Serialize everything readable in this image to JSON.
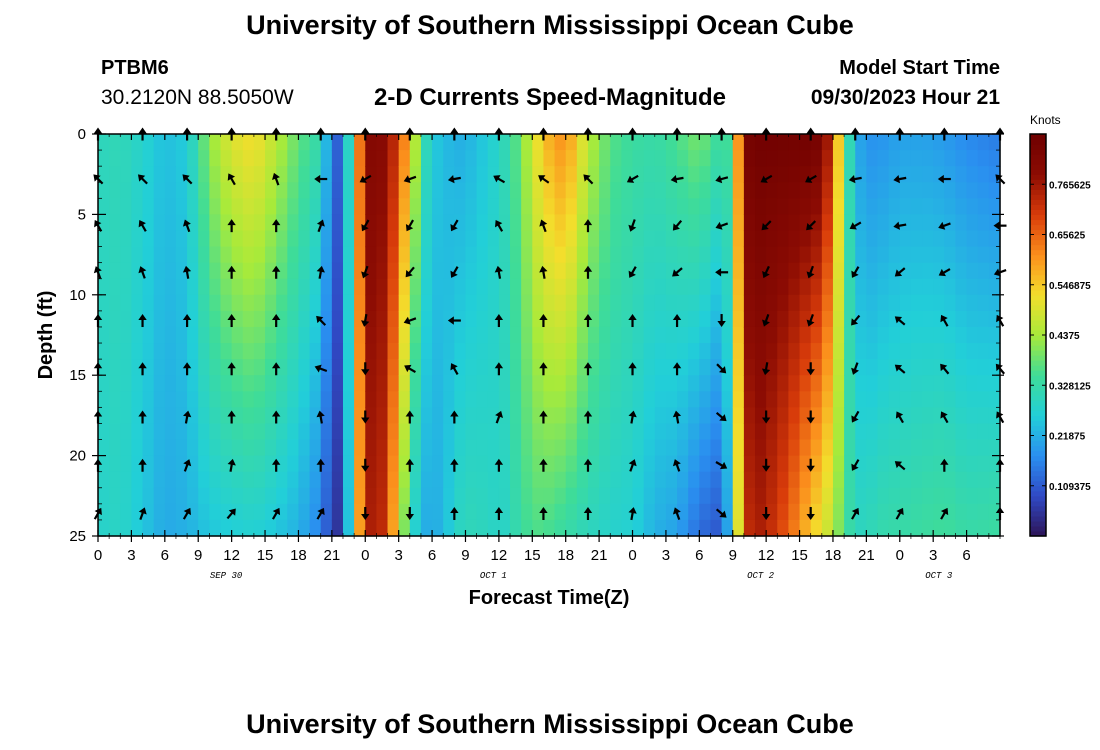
{
  "header": {
    "title": "University of Southern Mississippi Ocean Cube",
    "station_id": "PTBM6",
    "station_coords": "30.2120N  88.5050W",
    "subtitle": "2-D Currents Speed-Magnitude",
    "model_start_label": "Model Start Time",
    "model_start_value": "09/30/2023 Hour 21"
  },
  "footer": {
    "title": "University of Southern Mississippi Ocean Cube"
  },
  "colors": {
    "colormap": [
      "#2d1457",
      "#3049c4",
      "#2a8ff0",
      "#22cfd8",
      "#3fdc98",
      "#a8ea3a",
      "#f3de2c",
      "#fb8e1c",
      "#d83b0a",
      "#8c0c03",
      "#6e0000"
    ],
    "arrow": "#000000"
  },
  "chart_data": {
    "type": "heatmap",
    "xlabel": "Forecast Time(Z)",
    "ylabel": "Depth (ft)",
    "x_hours_range": [
      0,
      81
    ],
    "ylim": [
      0,
      25
    ],
    "y_ticks": [
      "0",
      "5",
      "10",
      "15",
      "20",
      "25"
    ],
    "x_ticks": [
      "0",
      "3",
      "6",
      "9",
      "12",
      "15",
      "18",
      "21",
      "0",
      "3",
      "6",
      "9",
      "12",
      "15",
      "18",
      "21",
      "0",
      "3",
      "6",
      "9",
      "12",
      "15",
      "18",
      "21",
      "0",
      "3",
      "6"
    ],
    "x_tick_hours": [
      0,
      3,
      6,
      9,
      12,
      15,
      18,
      21,
      24,
      27,
      30,
      33,
      36,
      39,
      42,
      45,
      48,
      51,
      54,
      57,
      60,
      63,
      66,
      69,
      72,
      75,
      78
    ],
    "date_labels": [
      {
        "label": "SEP 30",
        "hour": 11.5
      },
      {
        "label": "OCT 1",
        "hour": 35.5
      },
      {
        "label": "OCT 2",
        "hour": 59.5
      },
      {
        "label": "OCT 3",
        "hour": 75.5
      }
    ],
    "colorbar": {
      "unit": "Knots",
      "range": [
        0,
        0.875
      ],
      "tick_labels": [
        "0.765625",
        "0.65625",
        "0.546875",
        "0.4375",
        "0.328125",
        "0.21875",
        "0.109375"
      ],
      "tick_values": [
        0.765625,
        0.65625,
        0.546875,
        0.4375,
        0.328125,
        0.21875,
        0.109375
      ]
    },
    "speed_profile": {
      "hours": [
        0,
        2,
        4,
        6,
        8,
        10,
        12,
        14,
        16,
        18,
        20,
        21,
        22,
        23,
        24,
        25,
        26,
        27,
        28,
        29,
        30,
        31,
        32,
        33,
        34,
        35,
        36,
        37,
        38,
        39,
        40,
        42,
        44,
        46,
        48,
        50,
        52,
        54,
        56,
        57,
        58,
        59,
        60,
        61,
        62,
        63,
        64,
        65,
        66,
        67,
        68,
        69,
        70,
        72,
        74,
        76,
        78,
        81
      ],
      "surface": [
        0.3,
        0.31,
        0.28,
        0.24,
        0.26,
        0.42,
        0.5,
        0.53,
        0.46,
        0.38,
        0.32,
        0.14,
        0.1,
        0.48,
        0.8,
        0.82,
        0.78,
        0.7,
        0.55,
        0.35,
        0.26,
        0.24,
        0.22,
        0.22,
        0.24,
        0.26,
        0.29,
        0.33,
        0.4,
        0.48,
        0.56,
        0.62,
        0.46,
        0.37,
        0.34,
        0.33,
        0.36,
        0.4,
        0.33,
        0.37,
        0.84,
        0.86,
        0.86,
        0.86,
        0.86,
        0.86,
        0.86,
        0.84,
        0.7,
        0.4,
        0.22,
        0.18,
        0.18,
        0.2,
        0.2,
        0.19,
        0.17,
        0.15
      ],
      "bottom": [
        0.28,
        0.29,
        0.25,
        0.21,
        0.22,
        0.25,
        0.26,
        0.27,
        0.25,
        0.22,
        0.16,
        0.07,
        0.04,
        0.45,
        0.74,
        0.76,
        0.7,
        0.48,
        0.32,
        0.22,
        0.21,
        0.23,
        0.28,
        0.31,
        0.3,
        0.3,
        0.28,
        0.3,
        0.34,
        0.36,
        0.36,
        0.33,
        0.3,
        0.28,
        0.27,
        0.22,
        0.2,
        0.13,
        0.1,
        0.3,
        0.7,
        0.76,
        0.74,
        0.7,
        0.66,
        0.6,
        0.55,
        0.5,
        0.45,
        0.36,
        0.3,
        0.3,
        0.32,
        0.33,
        0.34,
        0.35,
        0.33,
        0.34
      ]
    },
    "arrow_rows_depth_ft": [
      0,
      2.8,
      5.7,
      8.6,
      11.6,
      14.6,
      17.6,
      20.6,
      23.6
    ],
    "arrow_cols_hours": [
      0,
      4,
      8,
      12,
      16,
      20,
      24,
      28,
      32,
      36,
      40,
      44,
      48,
      52,
      56,
      60,
      64,
      68,
      72,
      76,
      81
    ],
    "arrow_angles_deg": [
      [
        -90,
        -90,
        -90,
        -90,
        -90,
        -90,
        -90,
        -90,
        -90,
        -90,
        -90,
        -90,
        -90,
        -90,
        -90,
        -90,
        -90,
        -90,
        -90,
        -90,
        -90
      ],
      [
        -135,
        -135,
        -135,
        -120,
        -110,
        180,
        150,
        160,
        170,
        -150,
        -145,
        -135,
        150,
        170,
        165,
        150,
        150,
        170,
        170,
        180,
        -135
      ],
      [
        -120,
        -120,
        -110,
        -90,
        -90,
        -70,
        120,
        120,
        120,
        -120,
        -110,
        -90,
        110,
        130,
        160,
        135,
        135,
        150,
        170,
        160,
        180
      ],
      [
        -110,
        -110,
        -100,
        -90,
        -90,
        -80,
        110,
        130,
        120,
        -100,
        -100,
        -90,
        120,
        140,
        180,
        115,
        110,
        120,
        140,
        150,
        160
      ],
      [
        -90,
        -90,
        -90,
        -90,
        -90,
        -135,
        100,
        160,
        180,
        -90,
        -90,
        -90,
        -90,
        -90,
        90,
        110,
        110,
        130,
        -140,
        -120,
        -120
      ],
      [
        -90,
        -90,
        -90,
        -90,
        -90,
        -160,
        90,
        -150,
        -120,
        -90,
        -90,
        -90,
        -90,
        -90,
        45,
        100,
        90,
        110,
        -140,
        -130,
        -130
      ],
      [
        -90,
        -90,
        -80,
        -90,
        -90,
        -100,
        90,
        -90,
        -90,
        -70,
        -90,
        -90,
        -80,
        -100,
        40,
        90,
        90,
        120,
        -120,
        -120,
        -120
      ],
      [
        -90,
        -90,
        -70,
        -80,
        -90,
        -90,
        90,
        -90,
        -90,
        -90,
        -90,
        -90,
        -70,
        -110,
        30,
        90,
        90,
        120,
        -140,
        -90,
        -90
      ],
      [
        -60,
        -70,
        -60,
        -50,
        -60,
        -60,
        90,
        90,
        -90,
        -90,
        -90,
        -90,
        -80,
        -110,
        40,
        90,
        90,
        -60,
        -60,
        -60,
        -90
      ]
    ]
  }
}
